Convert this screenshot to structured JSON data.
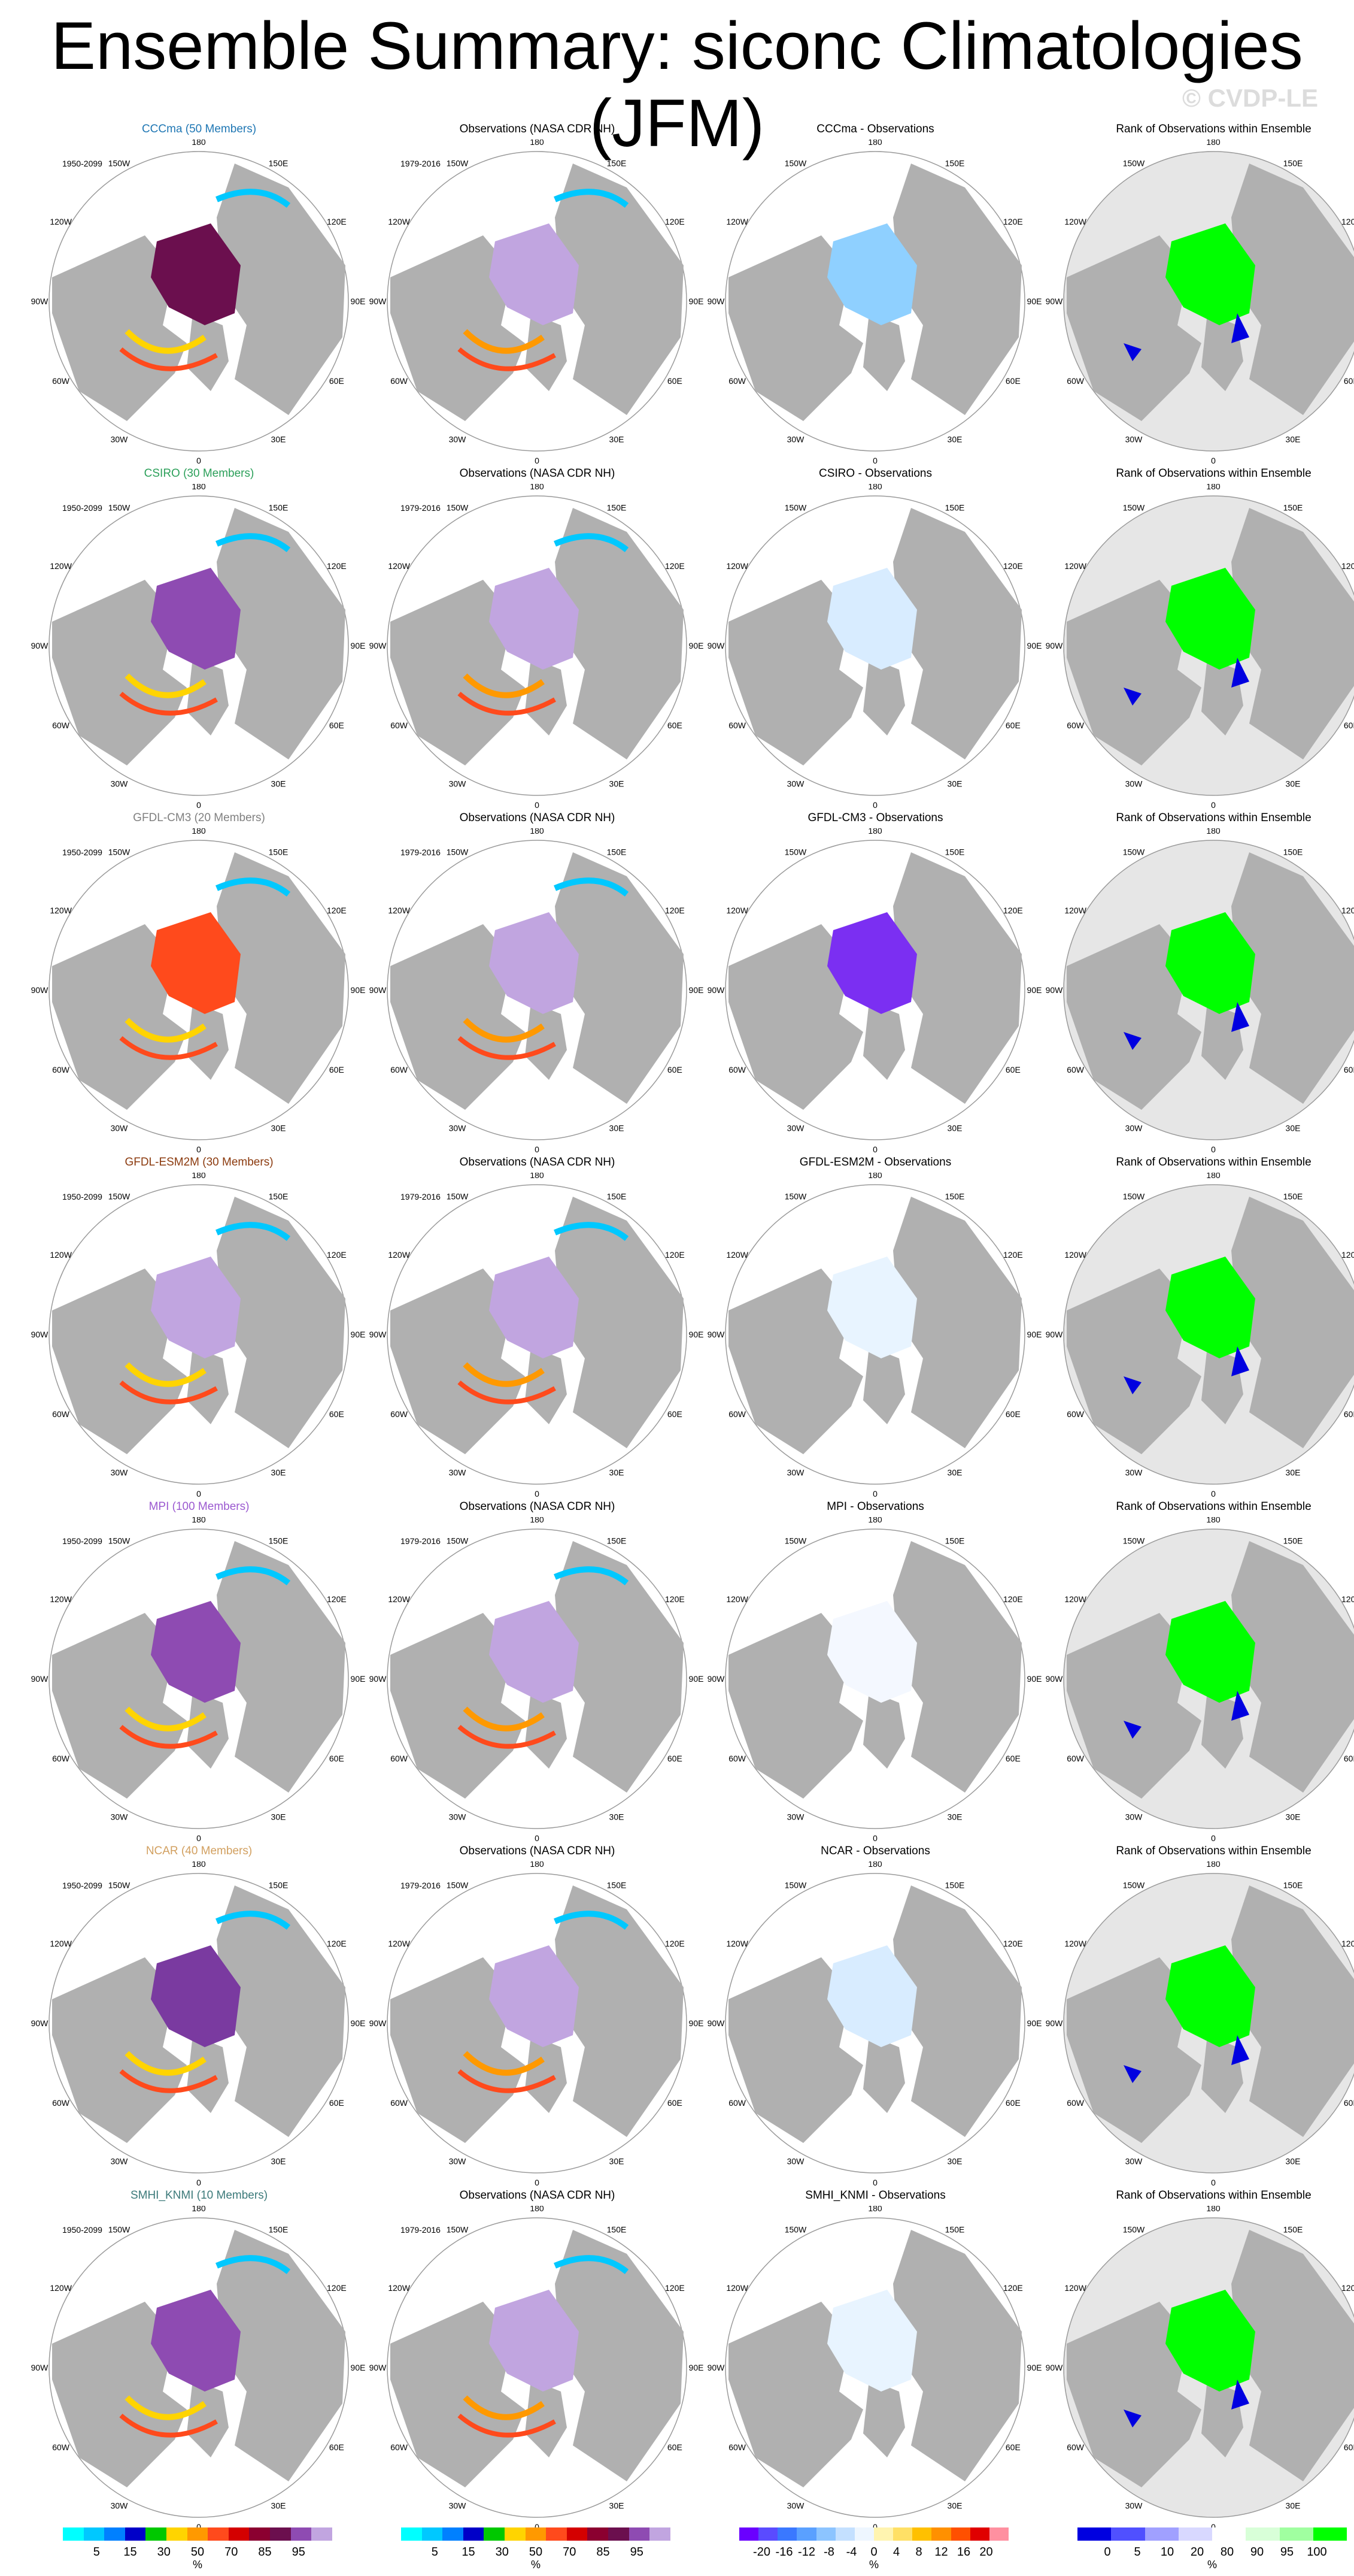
{
  "title": "Ensemble Summary: siconc Climatologies (JFM)",
  "copyright": "© CVDP-LE",
  "column_templates": {
    "observations": "Observations (NASA CDR NH)",
    "rank": "Rank of Observations within Ensemble"
  },
  "periods": {
    "model": "1950-2099",
    "obs": "1979-2016"
  },
  "map_labels": [
    "180",
    "150E",
    "120E",
    "90E",
    "60E",
    "30E",
    "0",
    "30W",
    "60W",
    "90W",
    "120W",
    "150W"
  ],
  "rows": [
    {
      "model_title": "CCCma (50 Members)",
      "model_color": "#1f77b4",
      "diff_title": "CCCma - Observations",
      "obs_title": "Observations (NASA CDR NH)",
      "rank_title": "Rank of Observations within Ensemble",
      "model_period": "1950-2099",
      "obs_period": "1979-2016",
      "arctic": "#6b0f4e",
      "diff_fill": "#8fd0ff"
    },
    {
      "model_title": "CSIRO (30 Members)",
      "model_color": "#2ca05a",
      "diff_title": "CSIRO - Observations",
      "obs_title": "Observations (NASA CDR NH)",
      "rank_title": "Rank of Observations within Ensemble",
      "model_period": "1950-2099",
      "obs_period": "1979-2016",
      "arctic": "#8e4bb2",
      "diff_fill": "#d8ecff"
    },
    {
      "model_title": "GFDL-CM3 (20 Members)",
      "model_color": "#808080",
      "diff_title": "GFDL-CM3 - Observations",
      "obs_title": "Observations (NASA CDR NH)",
      "rank_title": "Rank of Observations within Ensemble",
      "model_period": "1950-2099",
      "obs_period": "1979-2016",
      "arctic": "#ff4a1c",
      "diff_fill": "#7b2ff2"
    },
    {
      "model_title": "GFDL-ESM2M (30 Members)",
      "model_color": "#8b3a0e",
      "diff_title": "GFDL-ESM2M - Observations",
      "obs_title": "Observations (NASA CDR NH)",
      "rank_title": "Rank of Observations within Ensemble",
      "model_period": "1950-2099",
      "obs_period": "1979-2016",
      "arctic": "#c1a5e0",
      "diff_fill": "#e8f4ff"
    },
    {
      "model_title": "MPI (100 Members)",
      "model_color": "#9b59d0",
      "diff_title": "MPI - Observations",
      "obs_title": "Observations (NASA CDR NH)",
      "rank_title": "Rank of Observations within Ensemble",
      "model_period": "1950-2099",
      "obs_period": "1979-2016",
      "arctic": "#8e4bb2",
      "diff_fill": "#f4f8ff"
    },
    {
      "model_title": "NCAR (40 Members)",
      "model_color": "#d2a060",
      "diff_title": "NCAR - Observations",
      "obs_title": "Observations (NASA CDR NH)",
      "rank_title": "Rank of Observations within Ensemble",
      "model_period": "1950-2099",
      "obs_period": "1979-2016",
      "arctic": "#7a3aa0",
      "diff_fill": "#d8ecff"
    },
    {
      "model_title": "SMHI_KNMI (10 Members)",
      "model_color": "#3c7a7a",
      "diff_title": "SMHI_KNMI - Observations",
      "obs_title": "Observations (NASA CDR NH)",
      "rank_title": "Rank of Observations within Ensemble",
      "model_period": "1950-2099",
      "obs_period": "1979-2016",
      "arctic": "#8e4bb2",
      "diff_fill": "#e8f4ff"
    }
  ],
  "colorbars": [
    {
      "ticks": [
        "5",
        "15",
        "30",
        "50",
        "70",
        "85",
        "95"
      ],
      "unit": "%",
      "colors": [
        "#00ffff",
        "#00c8ff",
        "#0080ff",
        "#0000c8",
        "#00c800",
        "#ffd400",
        "#ff9900",
        "#ff4a1c",
        "#d40000",
        "#8b0030",
        "#6b0f4e",
        "#8e4bb2",
        "#c1a5e0"
      ]
    },
    {
      "ticks": [
        "5",
        "15",
        "30",
        "50",
        "70",
        "85",
        "95"
      ],
      "unit": "%",
      "colors": [
        "#00ffff",
        "#00c8ff",
        "#0080ff",
        "#0000c8",
        "#00c800",
        "#ffd400",
        "#ff9900",
        "#ff4a1c",
        "#d40000",
        "#8b0030",
        "#6b0f4e",
        "#8e4bb2",
        "#c1a5e0"
      ]
    },
    {
      "ticks": [
        "-20",
        "-16",
        "-12",
        "-8",
        "-4",
        "0",
        "4",
        "8",
        "12",
        "16",
        "20"
      ],
      "unit": "%",
      "colors": [
        "#6a00ff",
        "#5a4bff",
        "#3a78ff",
        "#5aa0ff",
        "#8cc4ff",
        "#c4e0ff",
        "#eef6ff",
        "#fff4b0",
        "#ffe066",
        "#ffc000",
        "#ff9000",
        "#ff5000",
        "#e00000",
        "#ff90a0"
      ]
    },
    {
      "ticks": [
        "0",
        "5",
        "10",
        "20",
        "80",
        "90",
        "95",
        "100"
      ],
      "unit": "%",
      "colors": [
        "#0000e0",
        "#5050ff",
        "#a0a0ff",
        "#d8d8ff",
        "#ffffff",
        "#d8ffd8",
        "#a0ffa0",
        "#00ff00"
      ]
    }
  ]
}
